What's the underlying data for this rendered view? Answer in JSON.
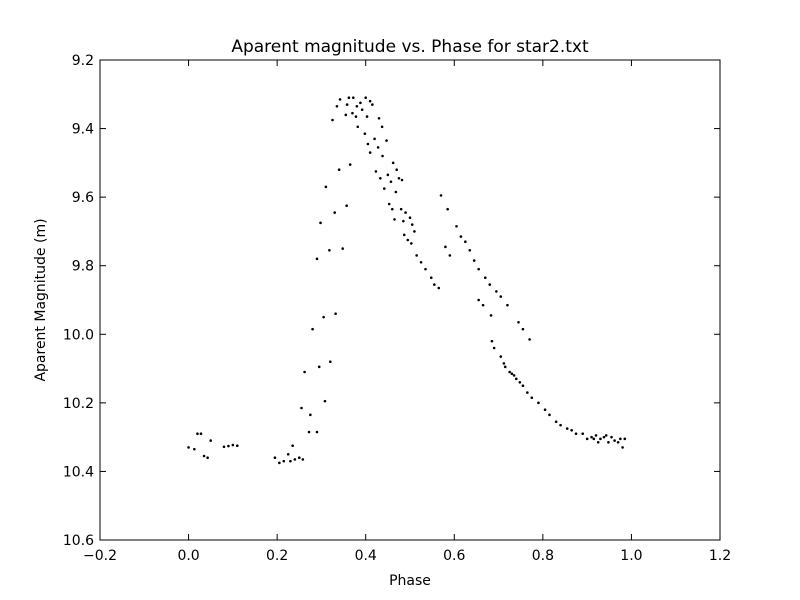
{
  "chart_data": {
    "type": "scatter",
    "title": "Aparent magnitude vs. Phase for star2.txt",
    "xlabel": "Phase",
    "ylabel": "Aparent Magnitude (m)",
    "xlim": [
      -0.2,
      1.2
    ],
    "ylim": [
      9.2,
      10.6
    ],
    "y_inverted": true,
    "grid": false,
    "x_ticks": [
      -0.2,
      0.0,
      0.2,
      0.4,
      0.6,
      0.8,
      1.0,
      1.2
    ],
    "x_tick_labels": [
      "−0.2",
      "0.0",
      "0.2",
      "0.4",
      "0.6",
      "0.8",
      "1.0",
      "1.2"
    ],
    "y_ticks": [
      9.2,
      9.4,
      9.6,
      9.8,
      10.0,
      10.2,
      10.4,
      10.6
    ],
    "y_tick_labels": [
      "9.2",
      "9.4",
      "9.6",
      "9.8",
      "10.0",
      "10.2",
      "10.4",
      "10.6"
    ],
    "marker_color": "#000000",
    "points": [
      [
        0.0,
        10.33
      ],
      [
        0.013,
        10.335
      ],
      [
        0.02,
        10.29
      ],
      [
        0.028,
        10.29
      ],
      [
        0.035,
        10.355
      ],
      [
        0.043,
        10.36
      ],
      [
        0.05,
        10.31
      ],
      [
        0.08,
        10.328
      ],
      [
        0.09,
        10.326
      ],
      [
        0.1,
        10.323
      ],
      [
        0.11,
        10.325
      ],
      [
        0.195,
        10.36
      ],
      [
        0.205,
        10.375
      ],
      [
        0.215,
        10.37
      ],
      [
        0.225,
        10.35
      ],
      [
        0.23,
        10.37
      ],
      [
        0.235,
        10.325
      ],
      [
        0.24,
        10.365
      ],
      [
        0.25,
        10.36
      ],
      [
        0.258,
        10.365
      ],
      [
        0.255,
        10.215
      ],
      [
        0.262,
        10.11
      ],
      [
        0.272,
        10.285
      ],
      [
        0.275,
        10.235
      ],
      [
        0.28,
        9.985
      ],
      [
        0.29,
        10.285
      ],
      [
        0.295,
        10.095
      ],
      [
        0.29,
        9.78
      ],
      [
        0.298,
        9.675
      ],
      [
        0.305,
        9.95
      ],
      [
        0.308,
        10.195
      ],
      [
        0.31,
        9.57
      ],
      [
        0.318,
        9.755
      ],
      [
        0.32,
        10.08
      ],
      [
        0.325,
        9.375
      ],
      [
        0.33,
        9.645
      ],
      [
        0.332,
        9.94
      ],
      [
        0.335,
        9.335
      ],
      [
        0.34,
        9.52
      ],
      [
        0.342,
        9.315
      ],
      [
        0.348,
        9.75
      ],
      [
        0.355,
        9.36
      ],
      [
        0.357,
        9.625
      ],
      [
        0.358,
        9.33
      ],
      [
        0.362,
        9.31
      ],
      [
        0.365,
        9.505
      ],
      [
        0.37,
        9.355
      ],
      [
        0.372,
        9.31
      ],
      [
        0.378,
        9.365
      ],
      [
        0.38,
        9.335
      ],
      [
        0.382,
        9.395
      ],
      [
        0.388,
        9.325
      ],
      [
        0.392,
        9.345
      ],
      [
        0.398,
        9.415
      ],
      [
        0.4,
        9.31
      ],
      [
        0.403,
        9.365
      ],
      [
        0.405,
        9.445
      ],
      [
        0.41,
        9.32
      ],
      [
        0.41,
        9.47
      ],
      [
        0.415,
        9.33
      ],
      [
        0.42,
        9.43
      ],
      [
        0.423,
        9.525
      ],
      [
        0.428,
        9.455
      ],
      [
        0.43,
        9.37
      ],
      [
        0.433,
        9.545
      ],
      [
        0.437,
        9.395
      ],
      [
        0.438,
        9.48
      ],
      [
        0.442,
        9.575
      ],
      [
        0.447,
        9.435
      ],
      [
        0.45,
        9.535
      ],
      [
        0.453,
        9.62
      ],
      [
        0.457,
        9.555
      ],
      [
        0.46,
        9.635
      ],
      [
        0.462,
        9.5
      ],
      [
        0.465,
        9.665
      ],
      [
        0.468,
        9.585
      ],
      [
        0.47,
        9.52
      ],
      [
        0.475,
        9.545
      ],
      [
        0.48,
        9.635
      ],
      [
        0.482,
        9.55
      ],
      [
        0.485,
        9.67
      ],
      [
        0.487,
        9.71
      ],
      [
        0.49,
        9.645
      ],
      [
        0.495,
        9.725
      ],
      [
        0.5,
        9.66
      ],
      [
        0.503,
        9.735
      ],
      [
        0.505,
        9.68
      ],
      [
        0.51,
        9.7
      ],
      [
        0.515,
        9.77
      ],
      [
        0.525,
        9.79
      ],
      [
        0.535,
        9.81
      ],
      [
        0.548,
        9.835
      ],
      [
        0.555,
        9.855
      ],
      [
        0.565,
        9.865
      ],
      [
        0.57,
        9.595
      ],
      [
        0.58,
        9.745
      ],
      [
        0.585,
        9.635
      ],
      [
        0.59,
        9.77
      ],
      [
        0.605,
        9.685
      ],
      [
        0.615,
        9.715
      ],
      [
        0.625,
        9.73
      ],
      [
        0.635,
        9.755
      ],
      [
        0.645,
        9.785
      ],
      [
        0.655,
        9.81
      ],
      [
        0.655,
        9.9
      ],
      [
        0.665,
        9.915
      ],
      [
        0.67,
        9.835
      ],
      [
        0.68,
        9.855
      ],
      [
        0.683,
        9.945
      ],
      [
        0.685,
        10.02
      ],
      [
        0.69,
        10.04
      ],
      [
        0.695,
        9.875
      ],
      [
        0.705,
        9.89
      ],
      [
        0.705,
        10.065
      ],
      [
        0.712,
        10.085
      ],
      [
        0.715,
        10.095
      ],
      [
        0.72,
        9.915
      ],
      [
        0.725,
        10.11
      ],
      [
        0.73,
        10.115
      ],
      [
        0.735,
        10.12
      ],
      [
        0.74,
        10.13
      ],
      [
        0.745,
        9.965
      ],
      [
        0.748,
        10.14
      ],
      [
        0.755,
        9.985
      ],
      [
        0.755,
        10.15
      ],
      [
        0.765,
        10.17
      ],
      [
        0.77,
        10.015
      ],
      [
        0.775,
        10.185
      ],
      [
        0.79,
        10.2
      ],
      [
        0.805,
        10.22
      ],
      [
        0.815,
        10.235
      ],
      [
        0.83,
        10.255
      ],
      [
        0.84,
        10.265
      ],
      [
        0.855,
        10.275
      ],
      [
        0.865,
        10.28
      ],
      [
        0.875,
        10.29
      ],
      [
        0.89,
        10.29
      ],
      [
        0.9,
        10.305
      ],
      [
        0.91,
        10.3
      ],
      [
        0.915,
        10.305
      ],
      [
        0.92,
        10.295
      ],
      [
        0.925,
        10.315
      ],
      [
        0.93,
        10.305
      ],
      [
        0.938,
        10.3
      ],
      [
        0.943,
        10.295
      ],
      [
        0.948,
        10.315
      ],
      [
        0.955,
        10.3
      ],
      [
        0.962,
        10.31
      ],
      [
        0.97,
        10.315
      ],
      [
        0.975,
        10.305
      ],
      [
        0.98,
        10.33
      ],
      [
        0.985,
        10.305
      ]
    ]
  }
}
